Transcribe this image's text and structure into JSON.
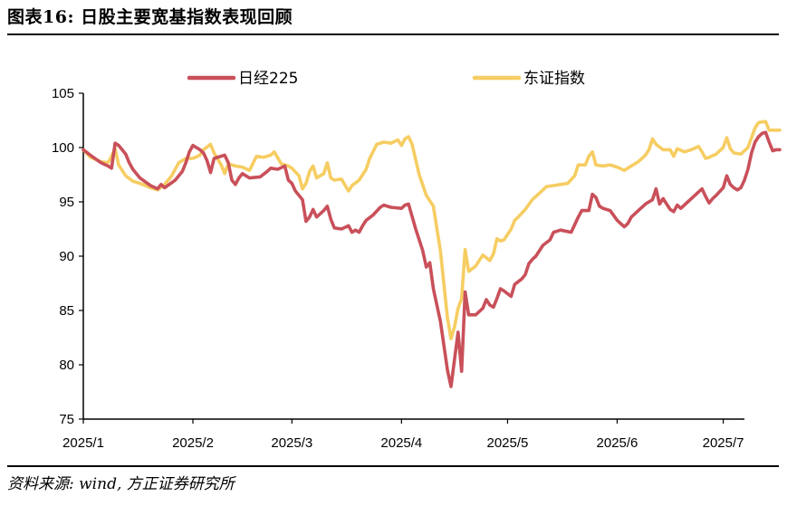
{
  "header": {
    "title": "图表16: 日股主要宽基指数表现回顾"
  },
  "footer": {
    "source": "资料来源: wind, 方正证券研究所"
  },
  "colors": {
    "series1": "#c9505a",
    "series2": "#f6cd62",
    "axis": "#000000"
  },
  "chart_data": {
    "type": "line",
    "title": "",
    "xlabel": "",
    "ylabel": "",
    "ylim": [
      75,
      105
    ],
    "yticks": [
      75,
      80,
      85,
      90,
      95,
      100,
      105
    ],
    "xlim": [
      "2025-01-01",
      "2025-07-07"
    ],
    "xticks": [
      {
        "date": "2025-01-01",
        "label": "2025/1"
      },
      {
        "date": "2025-02-01",
        "label": "2025/2"
      },
      {
        "date": "2025-03-01",
        "label": "2025/3"
      },
      {
        "date": "2025-04-01",
        "label": "2025/4"
      },
      {
        "date": "2025-05-01",
        "label": "2025/5"
      },
      {
        "date": "2025-06-01",
        "label": "2025/6"
      },
      {
        "date": "2025-07-01",
        "label": "2025/7"
      }
    ],
    "legend": "top",
    "grid": false,
    "series": [
      {
        "name": "日经225",
        "color": "#c9505a",
        "points": [
          [
            "2025-01-01",
            99.8
          ],
          [
            "2025-01-03",
            99.3
          ],
          [
            "2025-01-06",
            98.6
          ],
          [
            "2025-01-08",
            98.3
          ],
          [
            "2025-01-09",
            98.1
          ],
          [
            "2025-01-10",
            100.4
          ],
          [
            "2025-01-11",
            100.2
          ],
          [
            "2025-01-13",
            99.4
          ],
          [
            "2025-01-14",
            98.6
          ],
          [
            "2025-01-15",
            98.0
          ],
          [
            "2025-01-17",
            97.2
          ],
          [
            "2025-01-20",
            96.5
          ],
          [
            "2025-01-22",
            96.2
          ],
          [
            "2025-01-23",
            96.6
          ],
          [
            "2025-01-24",
            96.3
          ],
          [
            "2025-01-27",
            97.0
          ],
          [
            "2025-01-29",
            97.8
          ],
          [
            "2025-01-30",
            98.6
          ],
          [
            "2025-01-31",
            99.6
          ],
          [
            "2025-02-01",
            100.2
          ],
          [
            "2025-02-03",
            99.8
          ],
          [
            "2025-02-04",
            99.5
          ],
          [
            "2025-02-05",
            98.8
          ],
          [
            "2025-02-06",
            97.7
          ],
          [
            "2025-02-07",
            99.0
          ],
          [
            "2025-02-10",
            99.3
          ],
          [
            "2025-02-11",
            98.6
          ],
          [
            "2025-02-12",
            97.0
          ],
          [
            "2025-02-13",
            96.6
          ],
          [
            "2025-02-14",
            97.2
          ],
          [
            "2025-02-15",
            97.6
          ],
          [
            "2025-02-17",
            97.2
          ],
          [
            "2025-02-20",
            97.3
          ],
          [
            "2025-02-22",
            97.8
          ],
          [
            "2025-02-23",
            98.1
          ],
          [
            "2025-02-25",
            98.0
          ],
          [
            "2025-02-27",
            98.3
          ],
          [
            "2025-02-28",
            97.0
          ],
          [
            "2025-03-01",
            96.7
          ],
          [
            "2025-03-02",
            96.0
          ],
          [
            "2025-03-04",
            95.2
          ],
          [
            "2025-03-05",
            93.2
          ],
          [
            "2025-03-06",
            93.6
          ],
          [
            "2025-03-07",
            94.3
          ],
          [
            "2025-03-08",
            93.6
          ],
          [
            "2025-03-10",
            94.2
          ],
          [
            "2025-03-11",
            94.6
          ],
          [
            "2025-03-12",
            93.4
          ],
          [
            "2025-03-13",
            92.6
          ],
          [
            "2025-03-15",
            92.5
          ],
          [
            "2025-03-17",
            92.8
          ],
          [
            "2025-03-18",
            92.2
          ],
          [
            "2025-03-19",
            92.4
          ],
          [
            "2025-03-20",
            92.2
          ],
          [
            "2025-03-21",
            92.8
          ],
          [
            "2025-03-22",
            93.3
          ],
          [
            "2025-03-24",
            93.8
          ],
          [
            "2025-03-26",
            94.5
          ],
          [
            "2025-03-27",
            94.7
          ],
          [
            "2025-03-29",
            94.5
          ],
          [
            "2025-04-01",
            94.4
          ],
          [
            "2025-04-02",
            94.7
          ],
          [
            "2025-04-03",
            94.8
          ],
          [
            "2025-04-05",
            92.5
          ],
          [
            "2025-04-07",
            90.5
          ],
          [
            "2025-04-08",
            89.0
          ],
          [
            "2025-04-09",
            89.4
          ],
          [
            "2025-04-10",
            87.0
          ],
          [
            "2025-04-12",
            84.0
          ],
          [
            "2025-04-14",
            79.5
          ],
          [
            "2025-04-15",
            78.0
          ],
          [
            "2025-04-16",
            80.5
          ],
          [
            "2025-04-17",
            83.0
          ],
          [
            "2025-04-18",
            79.4
          ],
          [
            "2025-04-19",
            86.7
          ],
          [
            "2025-04-20",
            84.6
          ],
          [
            "2025-04-22",
            84.6
          ],
          [
            "2025-04-24",
            85.2
          ],
          [
            "2025-04-25",
            86.0
          ],
          [
            "2025-04-26",
            85.5
          ],
          [
            "2025-04-27",
            85.3
          ],
          [
            "2025-04-28",
            86.1
          ],
          [
            "2025-04-29",
            87.0
          ],
          [
            "2025-04-30",
            86.8
          ],
          [
            "2025-05-02",
            86.3
          ],
          [
            "2025-05-03",
            87.4
          ],
          [
            "2025-05-05",
            87.9
          ],
          [
            "2025-05-06",
            88.3
          ],
          [
            "2025-05-07",
            89.3
          ],
          [
            "2025-05-08",
            89.7
          ],
          [
            "2025-05-09",
            90.0
          ],
          [
            "2025-05-11",
            91.0
          ],
          [
            "2025-05-13",
            91.5
          ],
          [
            "2025-05-14",
            92.2
          ],
          [
            "2025-05-16",
            92.4
          ],
          [
            "2025-05-19",
            92.2
          ],
          [
            "2025-05-21",
            93.6
          ],
          [
            "2025-05-22",
            94.2
          ],
          [
            "2025-05-24",
            94.2
          ],
          [
            "2025-05-25",
            95.7
          ],
          [
            "2025-05-26",
            95.4
          ],
          [
            "2025-05-27",
            94.6
          ],
          [
            "2025-05-28",
            94.4
          ],
          [
            "2025-05-30",
            94.2
          ],
          [
            "2025-06-01",
            93.3
          ],
          [
            "2025-06-02",
            93.0
          ],
          [
            "2025-06-03",
            92.7
          ],
          [
            "2025-06-04",
            93.0
          ],
          [
            "2025-06-05",
            93.6
          ],
          [
            "2025-06-07",
            94.2
          ],
          [
            "2025-06-09",
            94.8
          ],
          [
            "2025-06-11",
            95.2
          ],
          [
            "2025-06-12",
            96.2
          ],
          [
            "2025-06-13",
            94.8
          ],
          [
            "2025-06-14",
            95.3
          ],
          [
            "2025-06-15",
            94.8
          ],
          [
            "2025-06-16",
            94.3
          ],
          [
            "2025-06-17",
            94.1
          ],
          [
            "2025-06-18",
            94.7
          ],
          [
            "2025-06-19",
            94.4
          ],
          [
            "2025-06-21",
            95.0
          ],
          [
            "2025-06-23",
            95.6
          ],
          [
            "2025-06-25",
            96.2
          ],
          [
            "2025-06-26",
            95.5
          ],
          [
            "2025-06-27",
            94.9
          ],
          [
            "2025-06-28",
            95.3
          ],
          [
            "2025-06-29",
            95.6
          ],
          [
            "2025-07-01",
            96.3
          ],
          [
            "2025-07-02",
            97.4
          ],
          [
            "2025-07-03",
            96.6
          ],
          [
            "2025-07-04",
            96.3
          ],
          [
            "2025-07-05",
            96.1
          ],
          [
            "2025-07-06",
            96.3
          ],
          [
            "2025-07-07",
            97.0
          ],
          [
            "2025-07-08",
            98.0
          ],
          [
            "2025-07-09",
            99.5
          ],
          [
            "2025-07-10",
            100.5
          ],
          [
            "2025-07-11",
            101.0
          ],
          [
            "2025-07-12",
            101.3
          ],
          [
            "2025-07-13",
            101.4
          ],
          [
            "2025-07-14",
            100.5
          ],
          [
            "2025-07-15",
            99.7
          ],
          [
            "2025-07-16",
            99.8
          ],
          [
            "2025-07-17",
            99.8
          ]
        ]
      },
      {
        "name": "东证指数",
        "color": "#f6cd62",
        "points": [
          [
            "2025-01-01",
            99.8
          ],
          [
            "2025-01-03",
            99.1
          ],
          [
            "2025-01-06",
            98.7
          ],
          [
            "2025-01-08",
            98.6
          ],
          [
            "2025-01-09",
            99.2
          ],
          [
            "2025-01-10",
            99.9
          ],
          [
            "2025-01-11",
            98.4
          ],
          [
            "2025-01-13",
            97.4
          ],
          [
            "2025-01-15",
            96.9
          ],
          [
            "2025-01-17",
            96.7
          ],
          [
            "2025-01-20",
            96.3
          ],
          [
            "2025-01-22",
            96.1
          ],
          [
            "2025-01-24",
            96.6
          ],
          [
            "2025-01-26",
            97.4
          ],
          [
            "2025-01-28",
            98.6
          ],
          [
            "2025-01-30",
            99.0
          ],
          [
            "2025-02-01",
            99.0
          ],
          [
            "2025-02-03",
            99.3
          ],
          [
            "2025-02-04",
            99.8
          ],
          [
            "2025-02-06",
            100.3
          ],
          [
            "2025-02-07",
            99.5
          ],
          [
            "2025-02-09",
            98.4
          ],
          [
            "2025-02-10",
            97.6
          ],
          [
            "2025-02-11",
            98.5
          ],
          [
            "2025-02-13",
            98.3
          ],
          [
            "2025-02-15",
            98.2
          ],
          [
            "2025-02-17",
            97.9
          ],
          [
            "2025-02-19",
            99.2
          ],
          [
            "2025-02-21",
            99.1
          ],
          [
            "2025-02-23",
            99.3
          ],
          [
            "2025-02-24",
            99.6
          ],
          [
            "2025-02-26",
            98.5
          ],
          [
            "2025-02-28",
            98.3
          ],
          [
            "2025-03-01",
            98.1
          ],
          [
            "2025-03-03",
            97.4
          ],
          [
            "2025-03-04",
            96.2
          ],
          [
            "2025-03-05",
            96.7
          ],
          [
            "2025-03-06",
            97.8
          ],
          [
            "2025-03-07",
            98.3
          ],
          [
            "2025-03-08",
            97.2
          ],
          [
            "2025-03-10",
            97.6
          ],
          [
            "2025-03-11",
            98.6
          ],
          [
            "2025-03-12",
            97.2
          ],
          [
            "2025-03-13",
            97.0
          ],
          [
            "2025-03-15",
            97.1
          ],
          [
            "2025-03-17",
            96.0
          ],
          [
            "2025-03-18",
            96.5
          ],
          [
            "2025-03-20",
            97.0
          ],
          [
            "2025-03-22",
            98.0
          ],
          [
            "2025-03-23",
            99.0
          ],
          [
            "2025-03-25",
            100.3
          ],
          [
            "2025-03-27",
            100.5
          ],
          [
            "2025-03-29",
            100.4
          ],
          [
            "2025-03-31",
            100.7
          ],
          [
            "2025-04-01",
            100.2
          ],
          [
            "2025-04-02",
            100.8
          ],
          [
            "2025-04-03",
            101.0
          ],
          [
            "2025-04-04",
            100.3
          ],
          [
            "2025-04-06",
            97.5
          ],
          [
            "2025-04-08",
            95.6
          ],
          [
            "2025-04-10",
            94.6
          ],
          [
            "2025-04-12",
            90.5
          ],
          [
            "2025-04-14",
            84.3
          ],
          [
            "2025-04-15",
            82.4
          ],
          [
            "2025-04-16",
            83.5
          ],
          [
            "2025-04-17",
            85.2
          ],
          [
            "2025-04-18",
            86.1
          ],
          [
            "2025-04-19",
            90.6
          ],
          [
            "2025-04-20",
            88.6
          ],
          [
            "2025-04-22",
            89.1
          ],
          [
            "2025-04-23",
            89.6
          ],
          [
            "2025-04-24",
            90.1
          ],
          [
            "2025-04-26",
            89.6
          ],
          [
            "2025-04-27",
            90.2
          ],
          [
            "2025-04-28",
            91.6
          ],
          [
            "2025-04-29",
            91.4
          ],
          [
            "2025-04-30",
            91.5
          ],
          [
            "2025-05-02",
            92.5
          ],
          [
            "2025-05-03",
            93.3
          ],
          [
            "2025-05-04",
            93.6
          ],
          [
            "2025-05-06",
            94.3
          ],
          [
            "2025-05-08",
            95.2
          ],
          [
            "2025-05-10",
            95.8
          ],
          [
            "2025-05-12",
            96.4
          ],
          [
            "2025-05-14",
            96.5
          ],
          [
            "2025-05-16",
            96.6
          ],
          [
            "2025-05-18",
            96.7
          ],
          [
            "2025-05-20",
            97.4
          ],
          [
            "2025-05-21",
            98.4
          ],
          [
            "2025-05-23",
            98.4
          ],
          [
            "2025-05-24",
            99.2
          ],
          [
            "2025-05-25",
            99.6
          ],
          [
            "2025-05-26",
            98.4
          ],
          [
            "2025-05-28",
            98.3
          ],
          [
            "2025-05-30",
            98.4
          ],
          [
            "2025-06-01",
            98.2
          ],
          [
            "2025-06-03",
            97.9
          ],
          [
            "2025-06-05",
            98.3
          ],
          [
            "2025-06-07",
            98.7
          ],
          [
            "2025-06-09",
            99.3
          ],
          [
            "2025-06-10",
            99.8
          ],
          [
            "2025-06-11",
            100.8
          ],
          [
            "2025-06-12",
            100.3
          ],
          [
            "2025-06-14",
            99.8
          ],
          [
            "2025-06-16",
            99.8
          ],
          [
            "2025-06-17",
            99.2
          ],
          [
            "2025-06-18",
            99.9
          ],
          [
            "2025-06-20",
            99.6
          ],
          [
            "2025-06-22",
            99.8
          ],
          [
            "2025-06-24",
            100.1
          ],
          [
            "2025-06-25",
            99.6
          ],
          [
            "2025-06-26",
            99.0
          ],
          [
            "2025-06-27",
            99.1
          ],
          [
            "2025-06-29",
            99.4
          ],
          [
            "2025-07-01",
            100.0
          ],
          [
            "2025-07-02",
            100.9
          ],
          [
            "2025-07-03",
            99.9
          ],
          [
            "2025-07-04",
            99.5
          ],
          [
            "2025-07-06",
            99.4
          ],
          [
            "2025-07-07",
            99.7
          ],
          [
            "2025-07-08",
            100.0
          ],
          [
            "2025-07-10",
            101.8
          ],
          [
            "2025-07-11",
            102.3
          ],
          [
            "2025-07-13",
            102.4
          ],
          [
            "2025-07-14",
            101.6
          ],
          [
            "2025-07-16",
            101.6
          ],
          [
            "2025-07-17",
            101.6
          ]
        ]
      }
    ]
  }
}
